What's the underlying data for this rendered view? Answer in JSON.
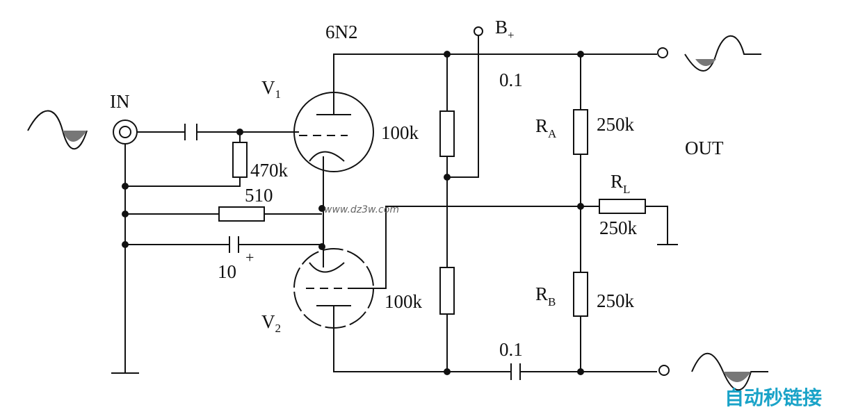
{
  "tube_type": "6N2",
  "supply": {
    "text": "B",
    "sub": "+"
  },
  "cap_top": "0.1",
  "input": "IN",
  "tube1": {
    "text": "V",
    "sub": "1"
  },
  "r_upper_left": "100k",
  "ra": {
    "text": "R",
    "sub": "A"
  },
  "ra_value": "250k",
  "output": "OUT",
  "r_grid": "470k",
  "r_cathode": "510",
  "rl": {
    "text": "R",
    "sub": "L"
  },
  "rl_value": "250k",
  "watermark": "www.dz3w.com",
  "cap_cathode": {
    "text": "10",
    "polarity": "+"
  },
  "tube2": {
    "text": "V",
    "sub": "2"
  },
  "r_lower_left": "100k",
  "rb": {
    "text": "R",
    "sub": "B"
  },
  "rb_value": "250k",
  "cap_bottom": "0.1",
  "brand": "自动秒链接"
}
